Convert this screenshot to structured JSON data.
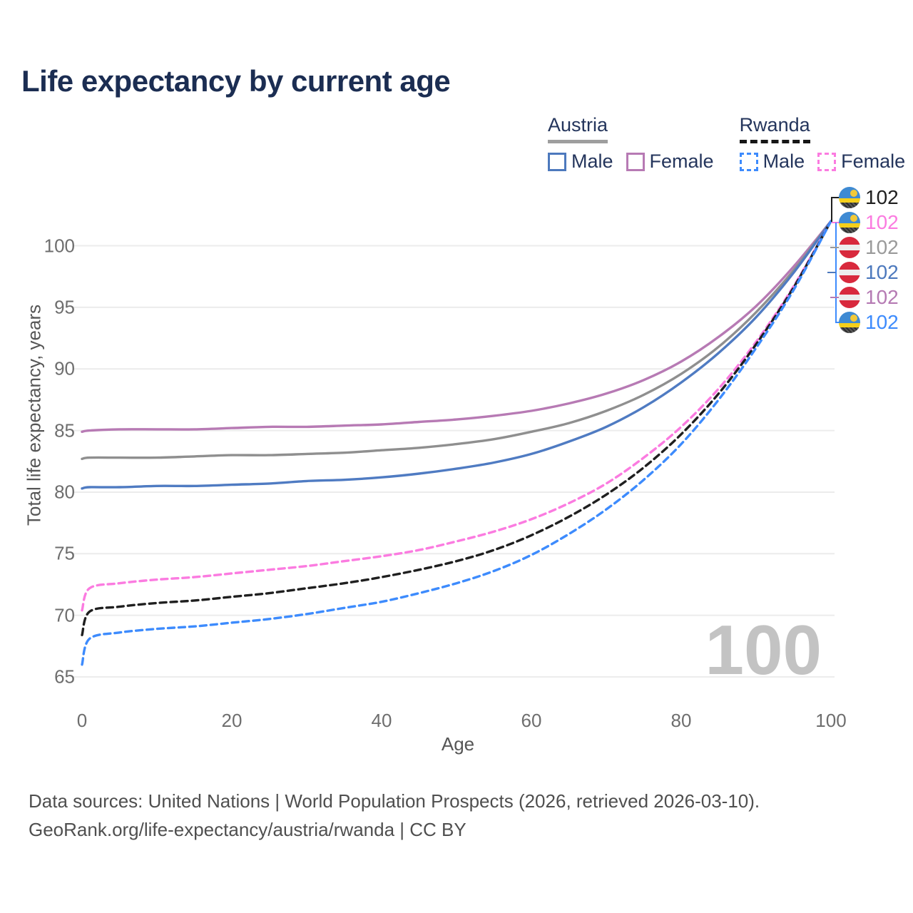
{
  "title": "Life expectancy by current age",
  "legend": {
    "groups": [
      {
        "name": "Austria",
        "line_style": "solid",
        "underline_color": "#9e9e9e",
        "items": [
          {
            "label": "Male",
            "color": "#4d79bd"
          },
          {
            "label": "Female",
            "color": "#b77ab4"
          }
        ]
      },
      {
        "name": "Rwanda",
        "line_style": "dashed",
        "underline_color": "#161616",
        "items": [
          {
            "label": "Male",
            "color": "#3d8bfd"
          },
          {
            "label": "Female",
            "color": "#fb7be0"
          }
        ]
      }
    ]
  },
  "watermark": "100",
  "end_labels": [
    {
      "value": "102",
      "flag": "rwanda",
      "series": "Rwanda both sexes",
      "color": "#1f1f1f"
    },
    {
      "value": "102",
      "flag": "rwanda",
      "series": "Rwanda female",
      "color": "#fb7be0"
    },
    {
      "value": "102",
      "flag": "austria",
      "series": "Austria both sexes",
      "color": "#9a9a9a"
    },
    {
      "value": "102",
      "flag": "austria",
      "series": "Austria male",
      "color": "#4d79bd"
    },
    {
      "value": "102",
      "flag": "austria",
      "series": "Austria female",
      "color": "#b57ab3"
    },
    {
      "value": "102",
      "flag": "rwanda",
      "series": "Rwanda male",
      "color": "#3d8bfd"
    }
  ],
  "footer": {
    "line1": "Data sources: United Nations | World Population Prospects (2026, retrieved 2026-03-10).",
    "line2": "GeoRank.org/life-expectancy/austria/rwanda | CC BY"
  },
  "chart_data": {
    "type": "line",
    "title": "Life expectancy by current age",
    "xlabel": "Age",
    "ylabel": "Total life expectancy, years",
    "x_ticks": [
      0,
      20,
      40,
      60,
      80,
      100
    ],
    "y_ticks": [
      65,
      70,
      75,
      80,
      85,
      90,
      95,
      100
    ],
    "xlim": [
      0,
      100
    ],
    "ylim": [
      63.5,
      103.2
    ],
    "grid": "horizontal",
    "legend_position": "top-right",
    "x": [
      0,
      1,
      5,
      10,
      15,
      20,
      25,
      30,
      35,
      40,
      45,
      50,
      55,
      60,
      65,
      70,
      75,
      80,
      85,
      90,
      95,
      100
    ],
    "series": [
      {
        "name": "Austria female",
        "country": "Austria",
        "sex": "female",
        "style": "solid",
        "color": "#b77ab4",
        "values": [
          84.9,
          85.0,
          85.1,
          85.1,
          85.1,
          85.2,
          85.3,
          85.3,
          85.4,
          85.5,
          85.7,
          85.9,
          86.2,
          86.6,
          87.2,
          88.0,
          89.1,
          90.6,
          92.6,
          95.1,
          98.3,
          102.0
        ]
      },
      {
        "name": "Austria both sexes",
        "country": "Austria",
        "sex": "both",
        "style": "solid",
        "color": "#8f8f8f",
        "values": [
          82.7,
          82.8,
          82.8,
          82.8,
          82.9,
          83.0,
          83.0,
          83.1,
          83.2,
          83.4,
          83.6,
          83.9,
          84.3,
          84.9,
          85.6,
          86.6,
          87.9,
          89.6,
          91.8,
          94.6,
          98.0,
          102.0
        ]
      },
      {
        "name": "Austria male",
        "country": "Austria",
        "sex": "male",
        "style": "solid",
        "color": "#4f7bc2",
        "values": [
          80.3,
          80.4,
          80.4,
          80.5,
          80.5,
          80.6,
          80.7,
          80.9,
          81.0,
          81.2,
          81.5,
          81.9,
          82.4,
          83.1,
          84.1,
          85.3,
          86.9,
          88.9,
          91.3,
          94.2,
          97.8,
          102.0
        ]
      },
      {
        "name": "Rwanda female",
        "country": "Rwanda",
        "sex": "female",
        "style": "dashed",
        "color": "#fb7be0",
        "values": [
          70.4,
          72.2,
          72.6,
          72.9,
          73.1,
          73.4,
          73.7,
          74.0,
          74.4,
          74.8,
          75.3,
          76.0,
          76.8,
          77.8,
          79.1,
          80.7,
          82.8,
          85.3,
          88.4,
          92.2,
          96.7,
          102.0
        ]
      },
      {
        "name": "Rwanda both sexes",
        "country": "Rwanda",
        "sex": "both",
        "style": "dashed",
        "color": "#1f1f1f",
        "values": [
          68.4,
          70.3,
          70.7,
          71.0,
          71.2,
          71.5,
          71.8,
          72.2,
          72.6,
          73.1,
          73.7,
          74.4,
          75.3,
          76.5,
          78.0,
          79.8,
          82.0,
          84.7,
          88.0,
          92.0,
          96.6,
          102.0
        ]
      },
      {
        "name": "Rwanda male",
        "country": "Rwanda",
        "sex": "male",
        "style": "dashed",
        "color": "#3d8bfd",
        "values": [
          66.0,
          68.1,
          68.6,
          68.9,
          69.1,
          69.4,
          69.7,
          70.1,
          70.6,
          71.1,
          71.8,
          72.6,
          73.6,
          74.9,
          76.6,
          78.6,
          81.0,
          83.9,
          87.5,
          91.7,
          96.4,
          102.0
        ]
      }
    ]
  }
}
